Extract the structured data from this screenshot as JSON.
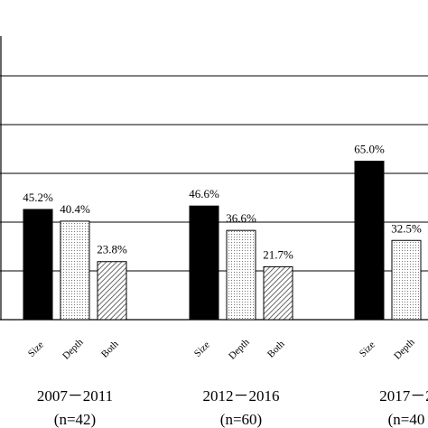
{
  "chart_data": {
    "type": "bar",
    "title": "",
    "xlabel": "",
    "ylabel": "",
    "ylim": [
      0,
      115
    ],
    "grid": true,
    "gridlines_at": [
      20,
      40,
      60,
      80,
      100
    ],
    "bar_categories": [
      "Size",
      "Depth",
      "Both"
    ],
    "groups": [
      {
        "period": "2007－2011",
        "n": "(n=42)",
        "bars": [
          {
            "category": "Size",
            "value": 45.2,
            "label": "45.2%"
          },
          {
            "category": "Depth",
            "value": 40.4,
            "label": "40.4%"
          },
          {
            "category": "Both",
            "value": 23.8,
            "label": "23.8%"
          }
        ]
      },
      {
        "period": "2012－2016",
        "n": "(n=60)",
        "bars": [
          {
            "category": "Size",
            "value": 46.6,
            "label": "46.6%"
          },
          {
            "category": "Depth",
            "value": 36.6,
            "label": "36.6%"
          },
          {
            "category": "Both",
            "value": 21.7,
            "label": "21.7%"
          }
        ]
      },
      {
        "period": "2017－2",
        "n": "(n=40",
        "bars": [
          {
            "category": "Size",
            "value": 65.0,
            "label": "65.0%"
          },
          {
            "category": "Depth",
            "value": 32.5,
            "label": "32.5%"
          }
        ]
      }
    ],
    "colors": {
      "Size": "#000000",
      "Depth": "#f2f2f2",
      "Both": "#cccccc",
      "grid": "#000000"
    },
    "fills": {
      "Size": "solid-black",
      "Depth": "dotted",
      "Both": "diagonal-hatch"
    }
  }
}
